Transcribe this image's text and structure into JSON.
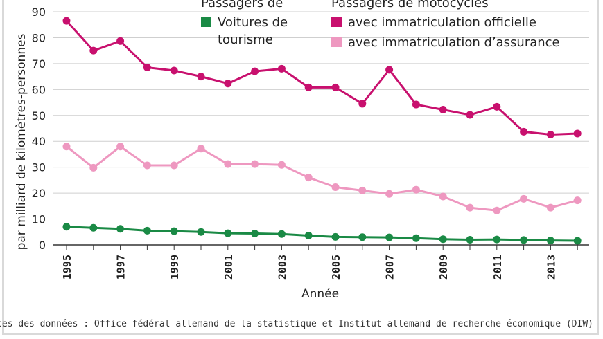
{
  "chart_data": {
    "type": "line",
    "xlabel": "Année",
    "ylabel": "par milliard de kilomètres-personnes",
    "ylim": [
      0,
      90
    ],
    "yticks": [
      0,
      10,
      20,
      30,
      40,
      50,
      60,
      70,
      80,
      90
    ],
    "xticks": [
      1995,
      1997,
      1999,
      2001,
      2003,
      2005,
      2007,
      2009,
      2011,
      2013
    ],
    "x": [
      1995,
      1996,
      1997,
      1998,
      1999,
      2000,
      2001,
      2002,
      2003,
      2004,
      2005,
      2006,
      2007,
      2008,
      2009,
      2010,
      2011,
      2012,
      2013,
      2014
    ],
    "grid": true,
    "legend": {
      "groups": [
        {
          "title": "Passagers de",
          "entries": [
            {
              "label_lines": [
                "Voitures de",
                "tourisme"
              ],
              "color": "#1a8a45"
            }
          ]
        },
        {
          "title": "Passagers de motocycles",
          "entries": [
            {
              "label_lines": [
                "avec immatriculation officielle"
              ],
              "color": "#c8106e"
            },
            {
              "label_lines": [
                "avec immatriculation d’assurance"
              ],
              "color": "#ee98c0"
            }
          ]
        }
      ]
    },
    "series": [
      {
        "name": "avec immatriculation officielle",
        "color": "#c8106e",
        "values": [
          86.5,
          75,
          78.7,
          68.5,
          67.3,
          65,
          62.3,
          67,
          68,
          60.8,
          60.8,
          54.5,
          67.6,
          54.2,
          52.2,
          50.2,
          53.3,
          43.7,
          42.6,
          43
        ]
      },
      {
        "name": "avec immatriculation d’assurance",
        "color": "#ee98c0",
        "values": [
          38,
          29.8,
          38,
          30.7,
          30.7,
          37.2,
          31.2,
          31.2,
          30.9,
          26,
          22.3,
          21,
          19.7,
          21.3,
          18.7,
          14.4,
          13.3,
          17.8,
          14.4,
          17.2
        ]
      },
      {
        "name": "Voitures de tourisme",
        "color": "#1a8a45",
        "values": [
          7,
          6.6,
          6.2,
          5.5,
          5.3,
          5,
          4.5,
          4.4,
          4.2,
          3.6,
          3.1,
          3,
          2.9,
          2.6,
          2.2,
          2,
          2.1,
          1.9,
          1.7,
          1.6
        ]
      }
    ]
  },
  "source_text": "Sources des données : Office fédéral allemand de la statistique et Institut allemand de recherche économique (DIW)"
}
